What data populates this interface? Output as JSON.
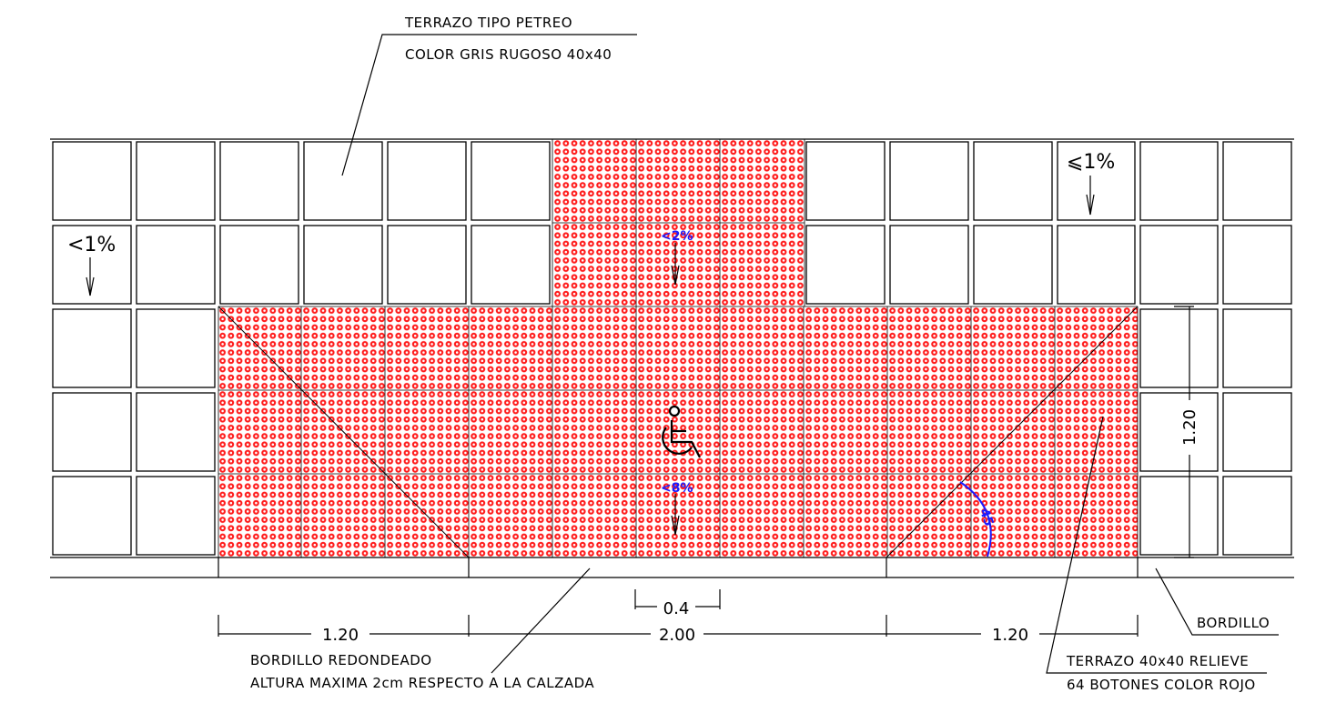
{
  "labels": {
    "top_callout_line1": "TERRAZO TIPO PETREO",
    "top_callout_line2": "COLOR GRIS RUGOSO 40x40",
    "bottom_left_line1": "BORDILLO REDONDEADO",
    "bottom_left_line2": "ALTURA MAXIMA 2cm RESPECTO A LA CALZADA",
    "bordillo": "BORDILLO",
    "bottom_right_line1": "TERRAZO 40x40 RELIEVE",
    "bottom_right_line2": "64 BOTONES COLOR ROJO"
  },
  "slopes": {
    "left": "<1%",
    "right": "⩽1%",
    "center_top": "<2%",
    "center_bottom": "<8%",
    "angle": "45"
  },
  "dimensions": {
    "left_width": "1.20",
    "center_width": "2.00",
    "right_width": "1.20",
    "button_spacing": "0.4",
    "depth": "1.20"
  },
  "colors": {
    "tactile_red": "#ff1a1a",
    "line": "#000000",
    "annotation_blue": "#1a1aff"
  },
  "symbols": {
    "accessibility": "wheelchair-icon"
  }
}
